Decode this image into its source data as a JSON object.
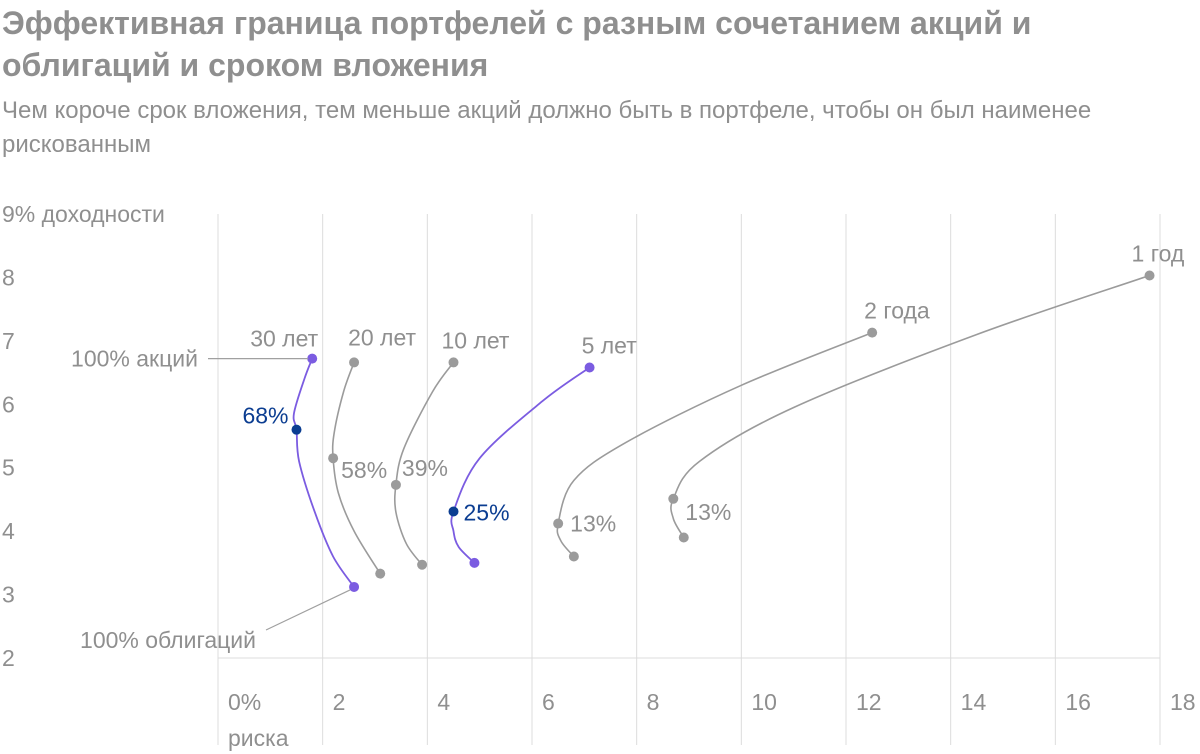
{
  "title": "Эффективная граница портфелей с разным сочетанием акций и облигаций и сроком вложения",
  "subtitle": "Чем короче срок вложения, тем меньше акций должно быть в портфеле, чтобы он был наименее рискованным",
  "chart_data": {
    "type": "line",
    "xlabel": "риска",
    "ylabel": "доходности",
    "x_unit_suffix": "%",
    "y_unit_suffix": "%",
    "xlim": [
      0,
      18
    ],
    "ylim": [
      2,
      9
    ],
    "x_ticks": [
      0,
      2,
      4,
      6,
      8,
      10,
      12,
      14,
      16,
      18
    ],
    "y_ticks": [
      2,
      3,
      4,
      5,
      6,
      7,
      8,
      9
    ],
    "grid": "vertical",
    "colors": {
      "highlight": "#7b5ce1",
      "highlight_point": "#0b3d91",
      "muted": "#9b9b9b",
      "text": "#8f8f8f"
    },
    "annotations": {
      "all_stocks": "100% акций",
      "all_bonds": "100% облигаций"
    },
    "series": [
      {
        "name": "30 лет",
        "highlight": true,
        "stocks_point": [
          1.8,
          6.72
        ],
        "bonds_point": [
          2.6,
          3.12
        ],
        "min_risk_point": [
          1.5,
          5.6
        ],
        "min_risk_label": "68%",
        "curve": [
          [
            1.8,
            6.72
          ],
          [
            1.65,
            6.4
          ],
          [
            1.45,
            5.85
          ],
          [
            1.5,
            5.6
          ],
          [
            1.55,
            5.1
          ],
          [
            1.85,
            4.3
          ],
          [
            2.2,
            3.6
          ],
          [
            2.6,
            3.12
          ]
        ]
      },
      {
        "name": "20 лет",
        "highlight": false,
        "stocks_point": [
          2.6,
          6.66
        ],
        "bonds_point": [
          3.1,
          3.33
        ],
        "min_risk_point": [
          2.2,
          5.15
        ],
        "min_risk_label": "58%",
        "curve": [
          [
            2.6,
            6.66
          ],
          [
            2.4,
            6.2
          ],
          [
            2.22,
            5.55
          ],
          [
            2.2,
            5.15
          ],
          [
            2.3,
            4.6
          ],
          [
            2.6,
            4.0
          ],
          [
            3.1,
            3.33
          ]
        ]
      },
      {
        "name": "10 лет",
        "highlight": false,
        "stocks_point": [
          4.5,
          6.66
        ],
        "bonds_point": [
          3.9,
          3.47
        ],
        "min_risk_point": [
          3.4,
          4.73
        ],
        "min_risk_label": "39%",
        "curve": [
          [
            4.5,
            6.66
          ],
          [
            4.1,
            6.2
          ],
          [
            3.55,
            5.3
          ],
          [
            3.4,
            4.73
          ],
          [
            3.4,
            4.3
          ],
          [
            3.6,
            3.8
          ],
          [
            3.9,
            3.47
          ]
        ]
      },
      {
        "name": "5 лет",
        "highlight": true,
        "stocks_point": [
          7.1,
          6.58
        ],
        "bonds_point": [
          4.9,
          3.5
        ],
        "min_risk_point": [
          4.5,
          4.31
        ],
        "min_risk_label": "25%",
        "curve": [
          [
            7.1,
            6.58
          ],
          [
            6.2,
            6.05
          ],
          [
            5.0,
            5.15
          ],
          [
            4.5,
            4.31
          ],
          [
            4.5,
            4.0
          ],
          [
            4.6,
            3.75
          ],
          [
            4.9,
            3.5
          ]
        ]
      },
      {
        "name": "2 года",
        "highlight": false,
        "stocks_point": [
          12.5,
          7.13
        ],
        "bonds_point": [
          6.8,
          3.6
        ],
        "min_risk_point": [
          6.5,
          4.12
        ],
        "min_risk_label": "13%",
        "curve": [
          [
            12.5,
            7.13
          ],
          [
            10.0,
            6.3
          ],
          [
            7.8,
            5.4
          ],
          [
            6.8,
            4.8
          ],
          [
            6.5,
            4.12
          ],
          [
            6.55,
            3.85
          ],
          [
            6.8,
            3.6
          ]
        ]
      },
      {
        "name": "1 год",
        "highlight": false,
        "stocks_point": [
          17.8,
          8.03
        ],
        "bonds_point": [
          8.9,
          3.9
        ],
        "min_risk_point": [
          8.7,
          4.51
        ],
        "min_risk_label": "13%",
        "curve": [
          [
            17.8,
            8.03
          ],
          [
            14.5,
            7.1
          ],
          [
            11.0,
            5.95
          ],
          [
            9.2,
            5.1
          ],
          [
            8.7,
            4.51
          ],
          [
            8.7,
            4.2
          ],
          [
            8.9,
            3.9
          ]
        ]
      }
    ]
  }
}
